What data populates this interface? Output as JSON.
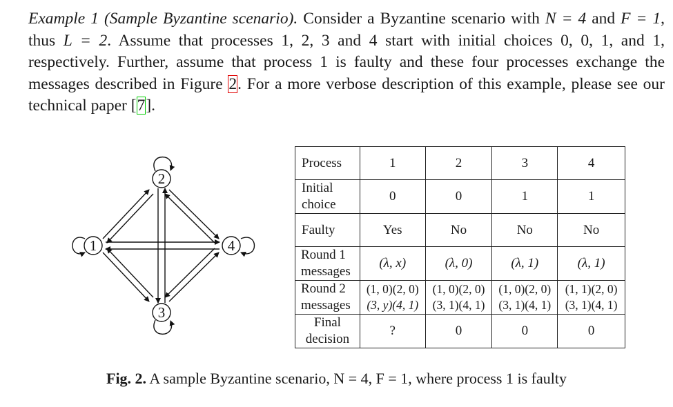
{
  "paragraph": {
    "example_label": "Example 1",
    "example_title": "(Sample Byzantine scenario).",
    "seg1": " Consider a Byzantine scenario with ",
    "n_eq": "N = 4",
    "seg2": " and ",
    "f_eq": "F = 1",
    "seg3": ", thus ",
    "l_eq": "L = 2",
    "seg4": ". Assume that processes 1, 2, 3 and 4 start with initial choices 0, 0, 1, and 1, respectively. Further, assume that process 1 is faulty and these four processes exchange the messages described in Figure ",
    "fig_ref": "2",
    "seg5": ". For a more verbose description of this example, please see our technical paper [",
    "cite_ref": "7",
    "seg6": "]."
  },
  "graph": {
    "nodes": [
      "1",
      "2",
      "3",
      "4"
    ]
  },
  "table": {
    "header": {
      "label": "Process",
      "cols": [
        "1",
        "2",
        "3",
        "4"
      ]
    },
    "initial": {
      "label_line1": "Initial",
      "label_line2": "choice",
      "values": [
        "0",
        "0",
        "1",
        "1"
      ]
    },
    "faulty": {
      "label": "Faulty",
      "values": [
        "Yes",
        "No",
        "No",
        "No"
      ]
    },
    "round1": {
      "label_line1": "Round 1",
      "label_line2": "messages",
      "values": [
        "(λ, x)",
        "(λ, 0)",
        "(λ, 1)",
        "(λ, 1)"
      ]
    },
    "round2": {
      "label_line1": "Round 2",
      "label_line2": "messages",
      "values": [
        {
          "line1": "(1, 0)(2, 0)",
          "line2": "(3, y)(4, 1)"
        },
        {
          "line1": "(1, 0)(2, 0)",
          "line2": "(3, 1)(4, 1)"
        },
        {
          "line1": "(1, 0)(2, 0)",
          "line2": "(3, 1)(4, 1)"
        },
        {
          "line1": "(1, 1)(2, 0)",
          "line2": "(3, 1)(4, 1)"
        }
      ]
    },
    "final": {
      "label_line1": "Final",
      "label_line2": "decision",
      "values": [
        "?",
        "0",
        "0",
        "0"
      ]
    }
  },
  "caption": {
    "label": "Fig. 2.",
    "text": " A sample Byzantine scenario, N = 4, F = 1, where process 1 is faulty"
  }
}
